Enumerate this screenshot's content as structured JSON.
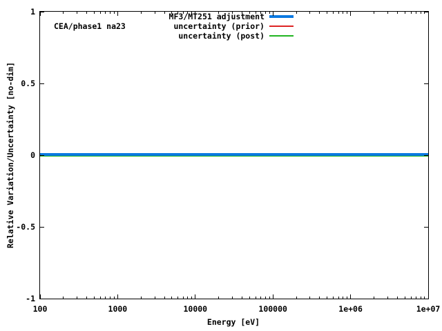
{
  "chart_data": {
    "type": "line",
    "title": "",
    "annotation": "CEA/phase1 na23",
    "xlabel": "Energy [eV]",
    "ylabel": "Relative Variation/Uncertainty [no-dim]",
    "x_scale": "log",
    "x_range": [
      100,
      10000000
    ],
    "y_range": [
      -1,
      1
    ],
    "grid": false,
    "legend_position": "top-right-inside-no-box",
    "x_ticks": [
      {
        "label": "100",
        "value": 100
      },
      {
        "label": "1000",
        "value": 1000
      },
      {
        "label": "10000",
        "value": 10000
      },
      {
        "label": "100000",
        "value": 100000
      },
      {
        "label": "1e+06",
        "value": 1000000
      },
      {
        "label": "1e+07",
        "value": 10000000
      }
    ],
    "y_ticks": [
      {
        "label": "1",
        "value": 1
      },
      {
        "label": "0.5",
        "value": 0.5
      },
      {
        "label": "0",
        "value": 0
      },
      {
        "label": "-0.5",
        "value": -0.5
      },
      {
        "label": "-1",
        "value": -1
      }
    ],
    "series": [
      {
        "name": "MF3/MT251 adjustment",
        "color": "#0b79e1",
        "line_width": 4,
        "x": [
          100,
          10000000
        ],
        "y": [
          0,
          0
        ]
      },
      {
        "name": "uncertainty (prior)",
        "color": "#dd2222",
        "line_width": 2,
        "x": [
          100,
          10000000
        ],
        "y": [
          0,
          0
        ]
      },
      {
        "name": "uncertainty (post)",
        "color": "#1fb41f",
        "line_width": 2,
        "x": [
          100,
          10000000
        ],
        "y": [
          0,
          0
        ]
      }
    ],
    "axis_color": "#000000",
    "background_color": "#ffffff"
  }
}
